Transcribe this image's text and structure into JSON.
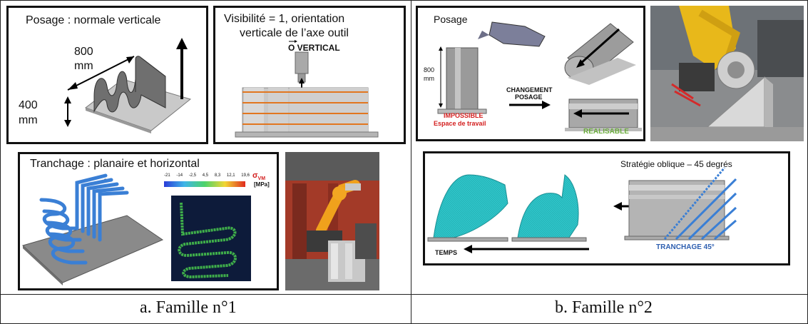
{
  "family1": {
    "posage": {
      "title": "Posage : normale verticale",
      "dim_800": "800",
      "dim_800_unit": "mm",
      "dim_400": "400",
      "dim_400_unit": "mm"
    },
    "visibilite": {
      "line1": "Visibilité = 1, orientation",
      "line2": "verticale de l’axe outil",
      "vector_label": "O VERTICAL"
    },
    "tranchage": {
      "title": "Tranchage : planaire et horizontal",
      "dash": "-",
      "colorbar_ticks": [
        "-21",
        "-14",
        "-2,5",
        "4,5",
        "8,3",
        "12,1",
        "19,6"
      ],
      "sigma_label": "σ",
      "sigma_sub": "VM",
      "unit": "[MPa]"
    },
    "caption": "a.   Famille n°1"
  },
  "family2": {
    "posage": {
      "title": "Posage",
      "dim_800": "800",
      "dim_800_unit": "mm",
      "impossible": "IMPOSSIBLE",
      "espace": "Espace de travail",
      "changement_line1": "CHANGEMENT",
      "changement_line2": "POSAGE",
      "realisable": "REALISABLE"
    },
    "strategie": {
      "title": "Stratégie oblique – 45 degrés",
      "temps": "TEMPS",
      "tranchage45": "TRANCHAGE 45°"
    },
    "caption": "b.   Famille n°2"
  },
  "colors": {
    "cyan_mesh": "#2fc4c8",
    "blue_path": "#3a7fd5",
    "orange_line": "#e2761f",
    "red_text": "#d42020",
    "green_text": "#6aab3c",
    "blue_text": "#2e5fb0"
  }
}
